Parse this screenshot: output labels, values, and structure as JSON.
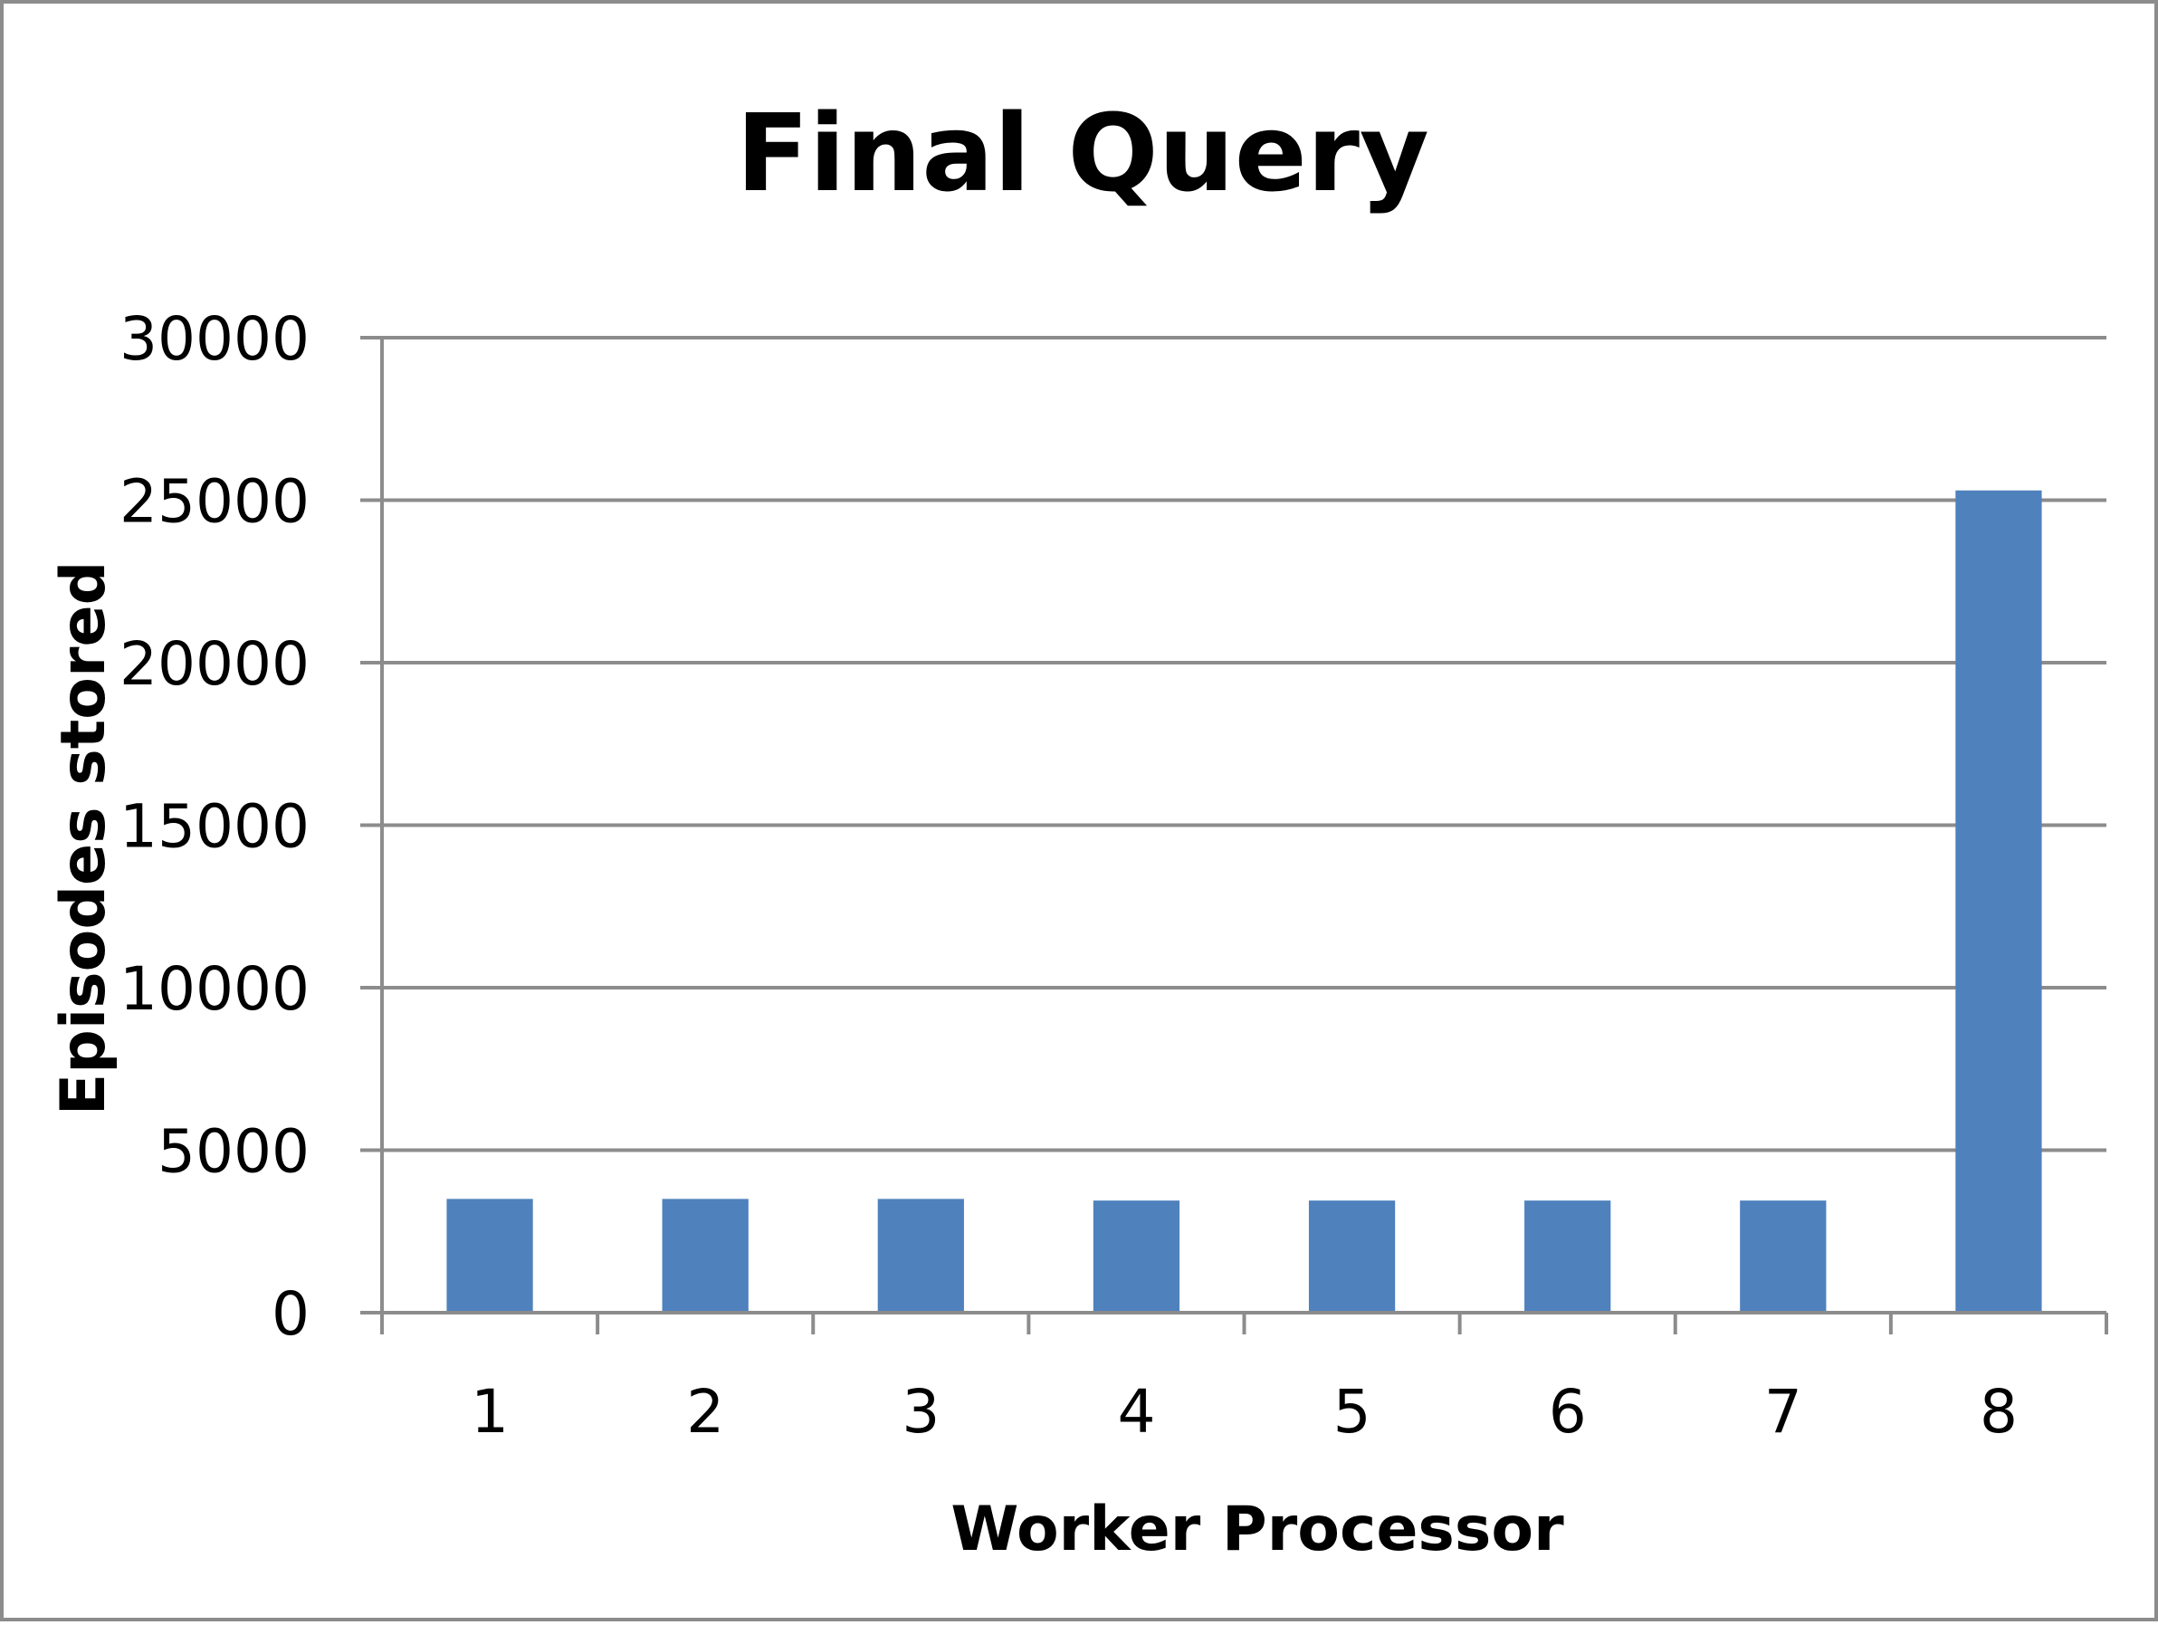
{
  "colors": {
    "bar": "#4f81bd",
    "grid": "#8c8c8c",
    "border": "#8c8c8c"
  },
  "chart_data": {
    "type": "bar",
    "title": "Final Query",
    "xlabel": "Worker Processor",
    "ylabel": "Episodes stored",
    "categories": [
      "1",
      "2",
      "3",
      "4",
      "5",
      "6",
      "7",
      "8"
    ],
    "values": [
      3500,
      3500,
      3500,
      3450,
      3450,
      3450,
      3450,
      25300
    ],
    "ylim": [
      0,
      30000
    ],
    "yticks": [
      0,
      5000,
      10000,
      15000,
      20000,
      25000,
      30000
    ],
    "ytick_labels": [
      "0",
      "5000",
      "10000",
      "15000",
      "20000",
      "25000",
      "30000"
    ],
    "grid": true,
    "legend": "none"
  }
}
